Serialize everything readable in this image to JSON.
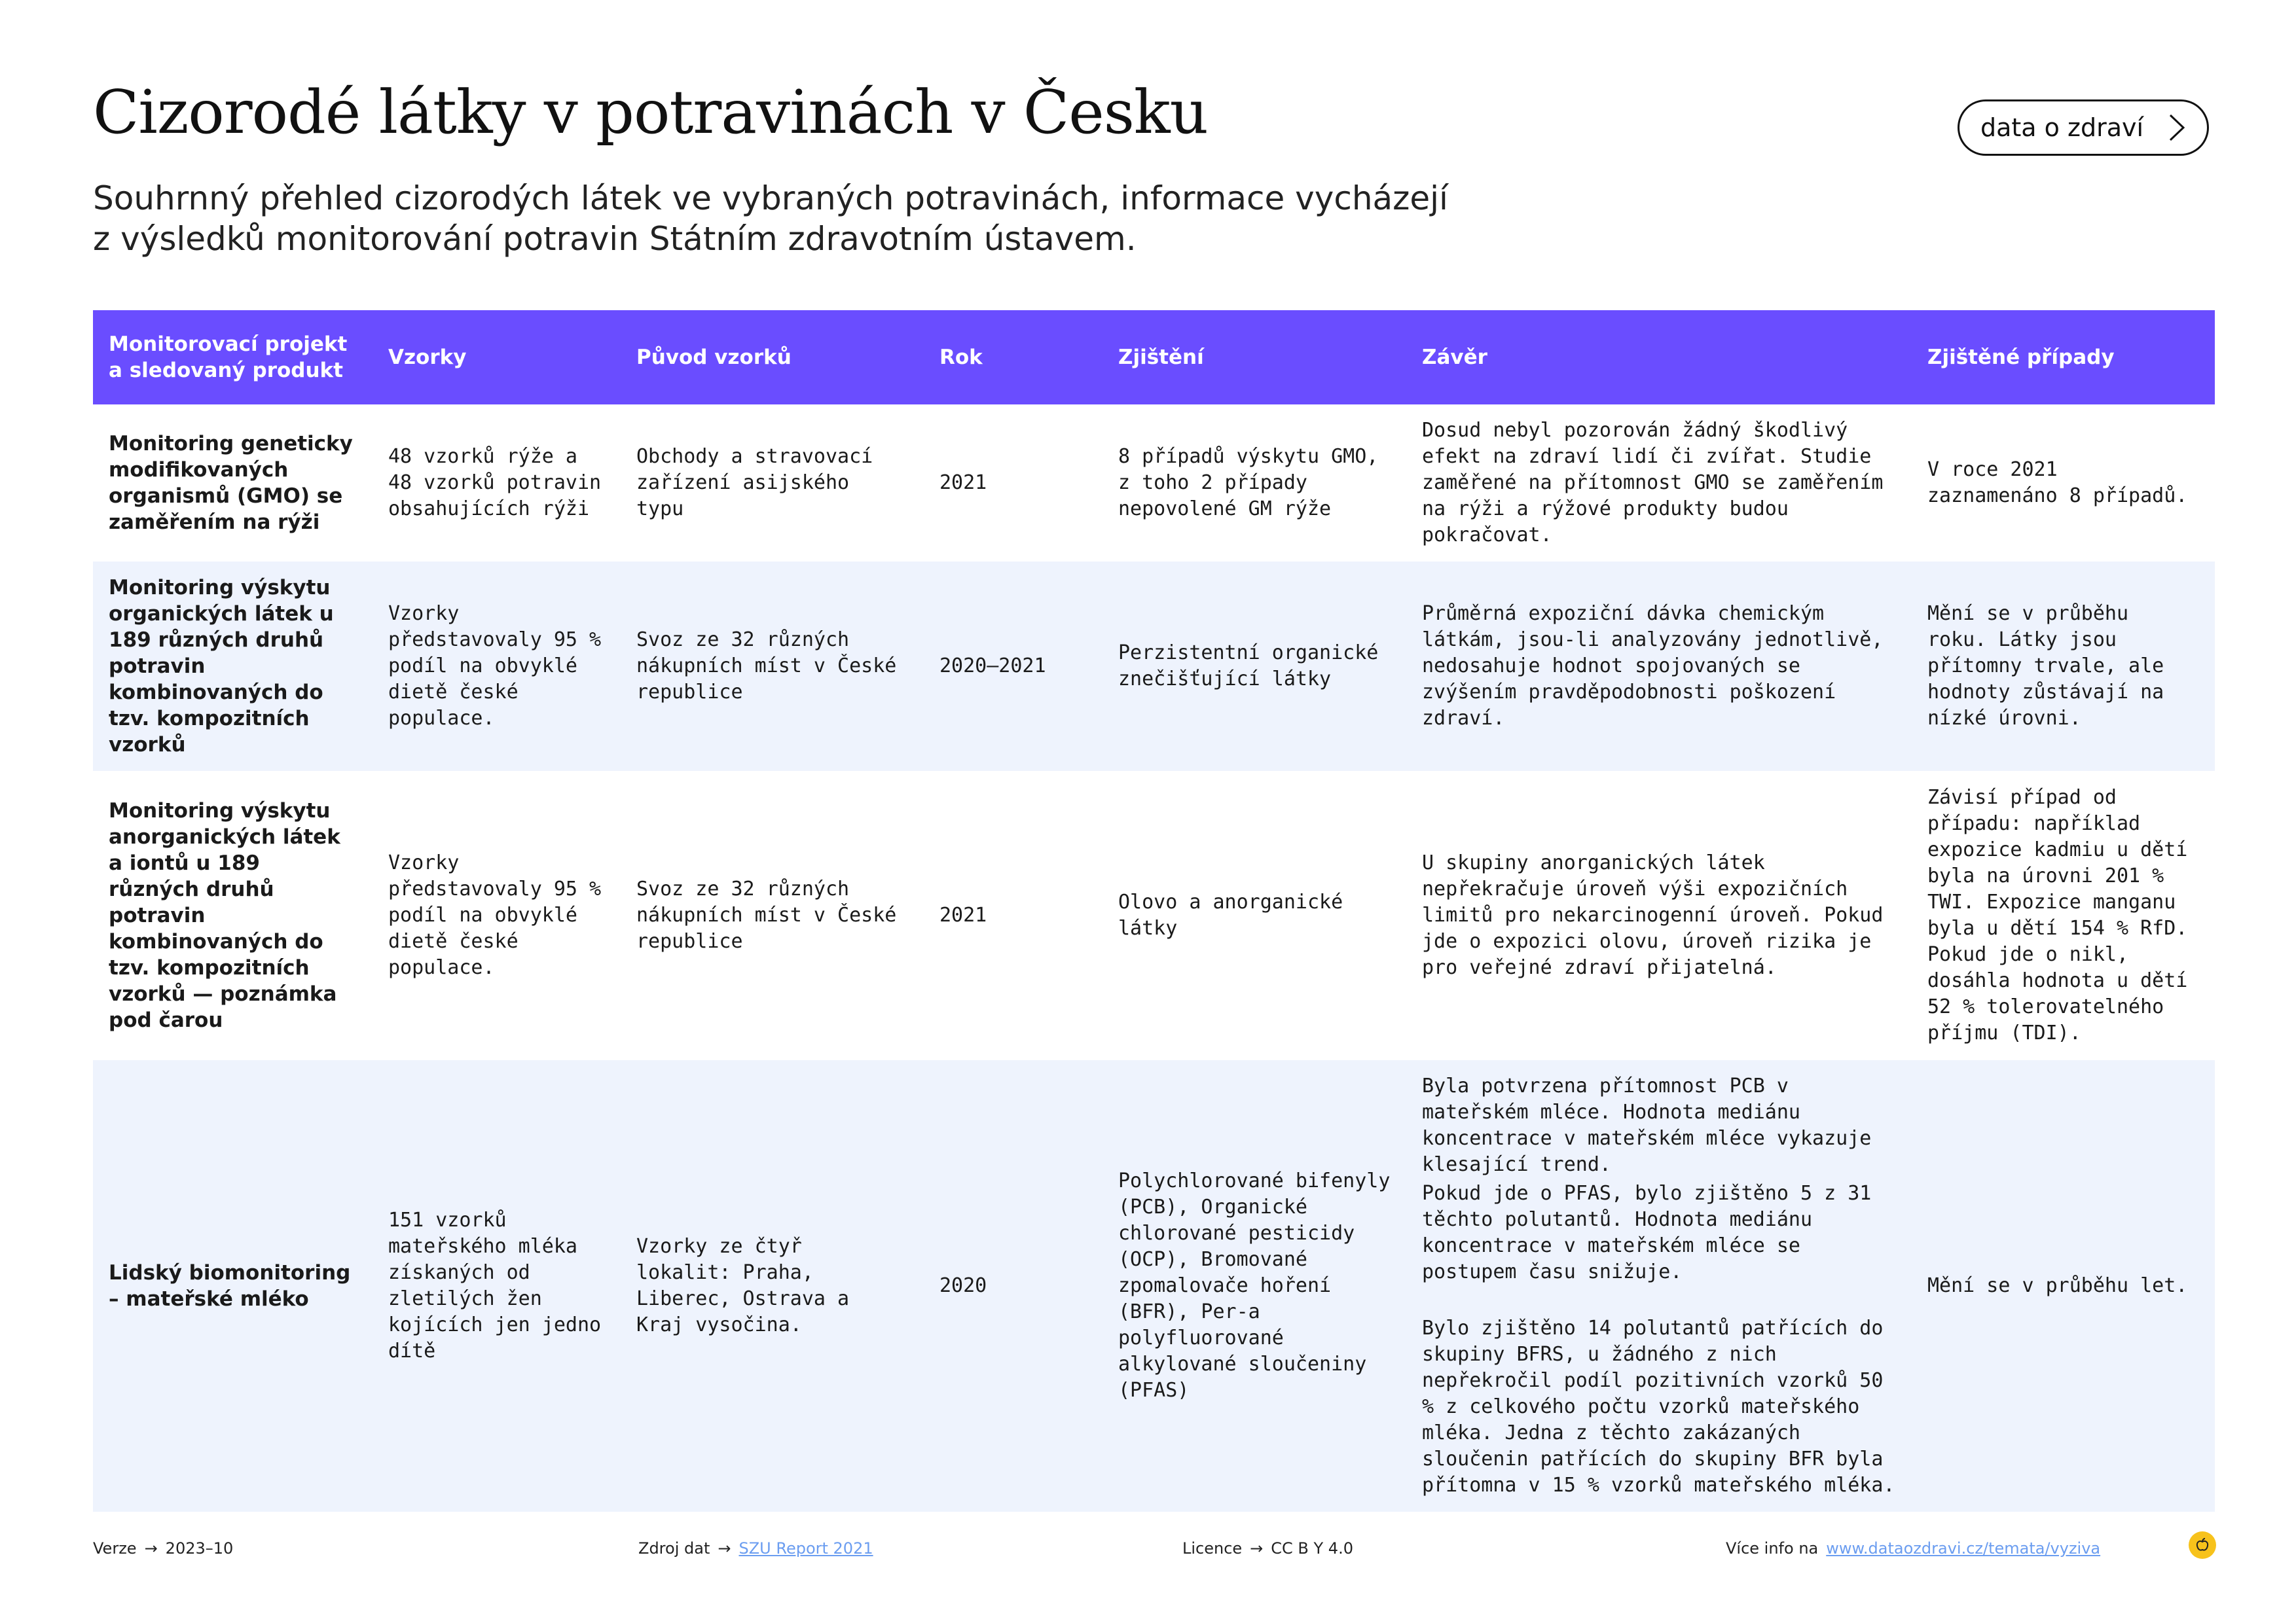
{
  "header": {
    "title": "Cizorodé látky v potravinách v Česku",
    "subtitle_line1": "Souhrnný přehled cizorodých látek ve vybraných potravinách, informace vycházejí",
    "subtitle_line2": "z výsledků monitorování potravin Státním zdravotním ústavem.",
    "nav_button": "data o zdraví",
    "nav_icon": "chevron-right-icon"
  },
  "table": {
    "headers": [
      "Monitorovací projekt a sledovaný produkt",
      "Vzorky",
      "Původ vzorků",
      "Rok",
      "Zjištění",
      "Závěr",
      "Zjištěné případy"
    ],
    "rows": [
      {
        "project": "Monitoring geneticky modifikovaných organismů (GMO) se zaměřením na rýži",
        "samples": "48 vzorků rýže a 48 vzorků potravin obsahujících rýži",
        "origin": "Obchody a stravovací zařízení asijského typu",
        "year": "2021",
        "finding": "8 případů výskytu GMO, z toho 2 případy nepovolené GM rýže",
        "conclusion": [
          "Dosud nebyl pozorován žádný škodlivý efekt na zdraví lidí či zvířat. Studie zaměřené na přítomnost GMO se zaměřením na rýži a rýžové produkty budou pokračovat."
        ],
        "cases": "V roce 2021 zaznamenáno 8 případů."
      },
      {
        "project": "Monitoring výskytu organických látek u 189 různých druhů potravin kombinovaných do tzv. kompozitních vzorků",
        "samples": "Vzorky představovaly 95 % podíl na obvyklé dietě české populace.",
        "origin": "Svoz ze 32 různých nákupních míst  v České republice",
        "year": "2020—2021",
        "finding": "Perzistentní organické znečišťující látky",
        "conclusion": [
          "Průměrná expoziční dávka chemickým látkám, jsou-li analyzovány jednotlivě, nedosahuje hodnot spojovaných se zvýšením pravděpodobnosti poškození zdraví."
        ],
        "cases": "Mění se v průběhu roku. Látky jsou přítomny trvale, ale hodnoty zůstávají na nízké úrovni."
      },
      {
        "project": "Monitoring výskytu anorganických látek a iontů u 189 různých druhů potravin kombinovaných do tzv. kompozitních vzorků — poznámka pod čarou",
        "samples": "Vzorky představovaly 95 % podíl na obvyklé dietě české populace.",
        "origin": "Svoz ze 32 různých nákupních míst  v České republice",
        "year": "2021",
        "finding": "Olovo a anorganické látky",
        "conclusion": [
          "U skupiny anorganických látek nepřekračuje úroveň výši expozičních limitů pro nekarcinogenní úroveň. Pokud jde o expozici olovu, úroveň rizika je pro veřejné zdraví přijatelná."
        ],
        "cases": "Závisí případ od případu: například expozice kadmiu u dětí byla na úrovni 201 % TWI. Expozice manganu byla u dětí 154 % RfD. Pokud jde o nikl, dosáhla hodnota u dětí 52 % tolerovatelného příjmu (TDI)."
      },
      {
        "project": "Lidský biomonitoring – mateřské mléko",
        "samples": "151 vzorků mateřského mléka získaných od zletilých žen kojících jen jedno dítě",
        "origin": "Vzorky ze čtyř lokalit: Praha, Liberec, Ostrava a Kraj vysočina.",
        "year": "2020",
        "finding": "Polychlorované bifenyly (PCB), Organické chlorované pesticidy (OCP), Bromované zpomalovače hoření (BFR), Per-a polyfluorované alkylované sloučeniny (PFAS)",
        "conclusion": [
          "Byla potvrzena přítomnost PCB v mateřském mléce. Hodnota mediánu koncentrace v mateřském mléce vykazuje klesající trend.",
          "Pokud jde o PFAS, bylo zjištěno 5 z 31 těchto polutantů. Hodnota mediánu koncentrace v mateřském mléce se postupem času snižuje.",
          "Bylo zjištěno 14 polutantů patřících do skupiny BFRS, u žádného z nich nepřekročil podíl pozitivních vzorků 50 % z celkového počtu vzorků mateřského mléka. Jedna z těchto zakázaných sloučenin patřících do skupiny BFR byla přítomna v 15 % vzorků mateřského mléka."
        ],
        "cases": "Mění se v průběhu let."
      }
    ]
  },
  "footer": {
    "version_label": "Verze",
    "version_value": "2023–10",
    "source_label": "Zdroj dat",
    "source_link": "SZU Report 2021",
    "license_label": "Licence",
    "license_value": "CC B Y 4.0",
    "more_label": "Více info na",
    "more_link": "www.dataozdravi.cz/temata/vyziva",
    "arrow_icon": "arrow-right-icon",
    "logo": "apple-logo-icon",
    "logo_color": "#f7c21b"
  },
  "colors": {
    "header_bg": "#6a4dff",
    "alt_row_bg": "#eef3fd",
    "link": "#6b9df0"
  }
}
